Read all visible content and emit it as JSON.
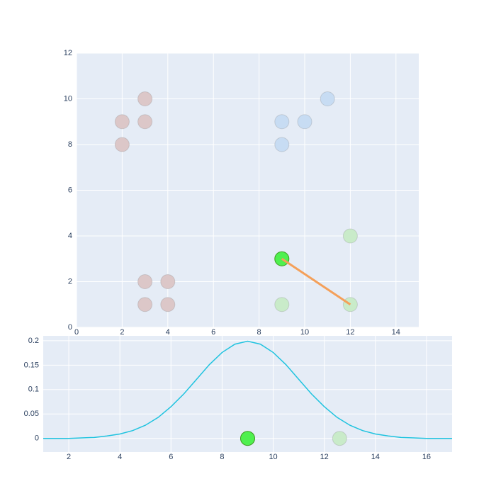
{
  "chart_data": [
    {
      "type": "scatter",
      "xlim": [
        0,
        15
      ],
      "ylim": [
        0,
        12
      ],
      "xticks": [
        0,
        2,
        4,
        6,
        8,
        10,
        12,
        14
      ],
      "yticks": [
        0,
        2,
        4,
        6,
        8,
        10,
        12
      ],
      "grid": true,
      "series": [
        {
          "mode": "markers",
          "color": "#dcc7c8",
          "x": [
            2,
            2,
            3,
            3,
            3,
            4,
            3,
            4
          ],
          "values": [
            9,
            8,
            10,
            9,
            2,
            2,
            1,
            1
          ]
        },
        {
          "mode": "markers",
          "color": "#c7dcf3",
          "x": [
            9,
            9,
            10,
            11
          ],
          "values": [
            9,
            8,
            9,
            10
          ]
        },
        {
          "mode": "markers",
          "color": "#c9ebc9",
          "x": [
            12,
            9,
            12
          ],
          "values": [
            4,
            1,
            1
          ]
        },
        {
          "mode": "markers",
          "color": "#4ff04f",
          "x": [
            9
          ],
          "values": [
            3
          ]
        },
        {
          "mode": "lines",
          "color": "#f4a05a",
          "x": [
            9,
            12
          ],
          "values": [
            3,
            1
          ]
        }
      ]
    },
    {
      "type": "line",
      "xlim": [
        1,
        17
      ],
      "ylim": [
        -0.028,
        0.21
      ],
      "xticks": [
        2,
        4,
        6,
        8,
        10,
        12,
        14,
        16
      ],
      "yticks": [
        0,
        0.05,
        0.1,
        0.15,
        0.2
      ],
      "grid": true,
      "series": [
        {
          "mode": "lines",
          "color": "#1fc3df",
          "x": [
            1,
            1.5,
            2,
            2.5,
            3,
            3.5,
            4,
            4.5,
            5,
            5.5,
            6,
            6.5,
            7,
            7.5,
            8,
            8.5,
            9,
            9.5,
            10,
            10.5,
            11,
            11.5,
            12,
            12.5,
            13,
            13.5,
            14,
            14.5,
            15,
            15.5,
            16,
            16.5,
            17
          ],
          "values": [
            0.0,
            0.0,
            0.0,
            0.001,
            0.002,
            0.005,
            0.009,
            0.016,
            0.027,
            0.043,
            0.065,
            0.091,
            0.121,
            0.151,
            0.176,
            0.193,
            0.199,
            0.193,
            0.176,
            0.151,
            0.121,
            0.091,
            0.065,
            0.043,
            0.027,
            0.016,
            0.009,
            0.005,
            0.002,
            0.001,
            0.0,
            0.0,
            0.0
          ]
        },
        {
          "mode": "markers",
          "color": "#4ff04f",
          "x": [
            9
          ],
          "values": [
            0
          ]
        },
        {
          "mode": "markers",
          "color": "#c9ebc9",
          "x": [
            12.6
          ],
          "values": [
            0
          ]
        }
      ]
    }
  ]
}
